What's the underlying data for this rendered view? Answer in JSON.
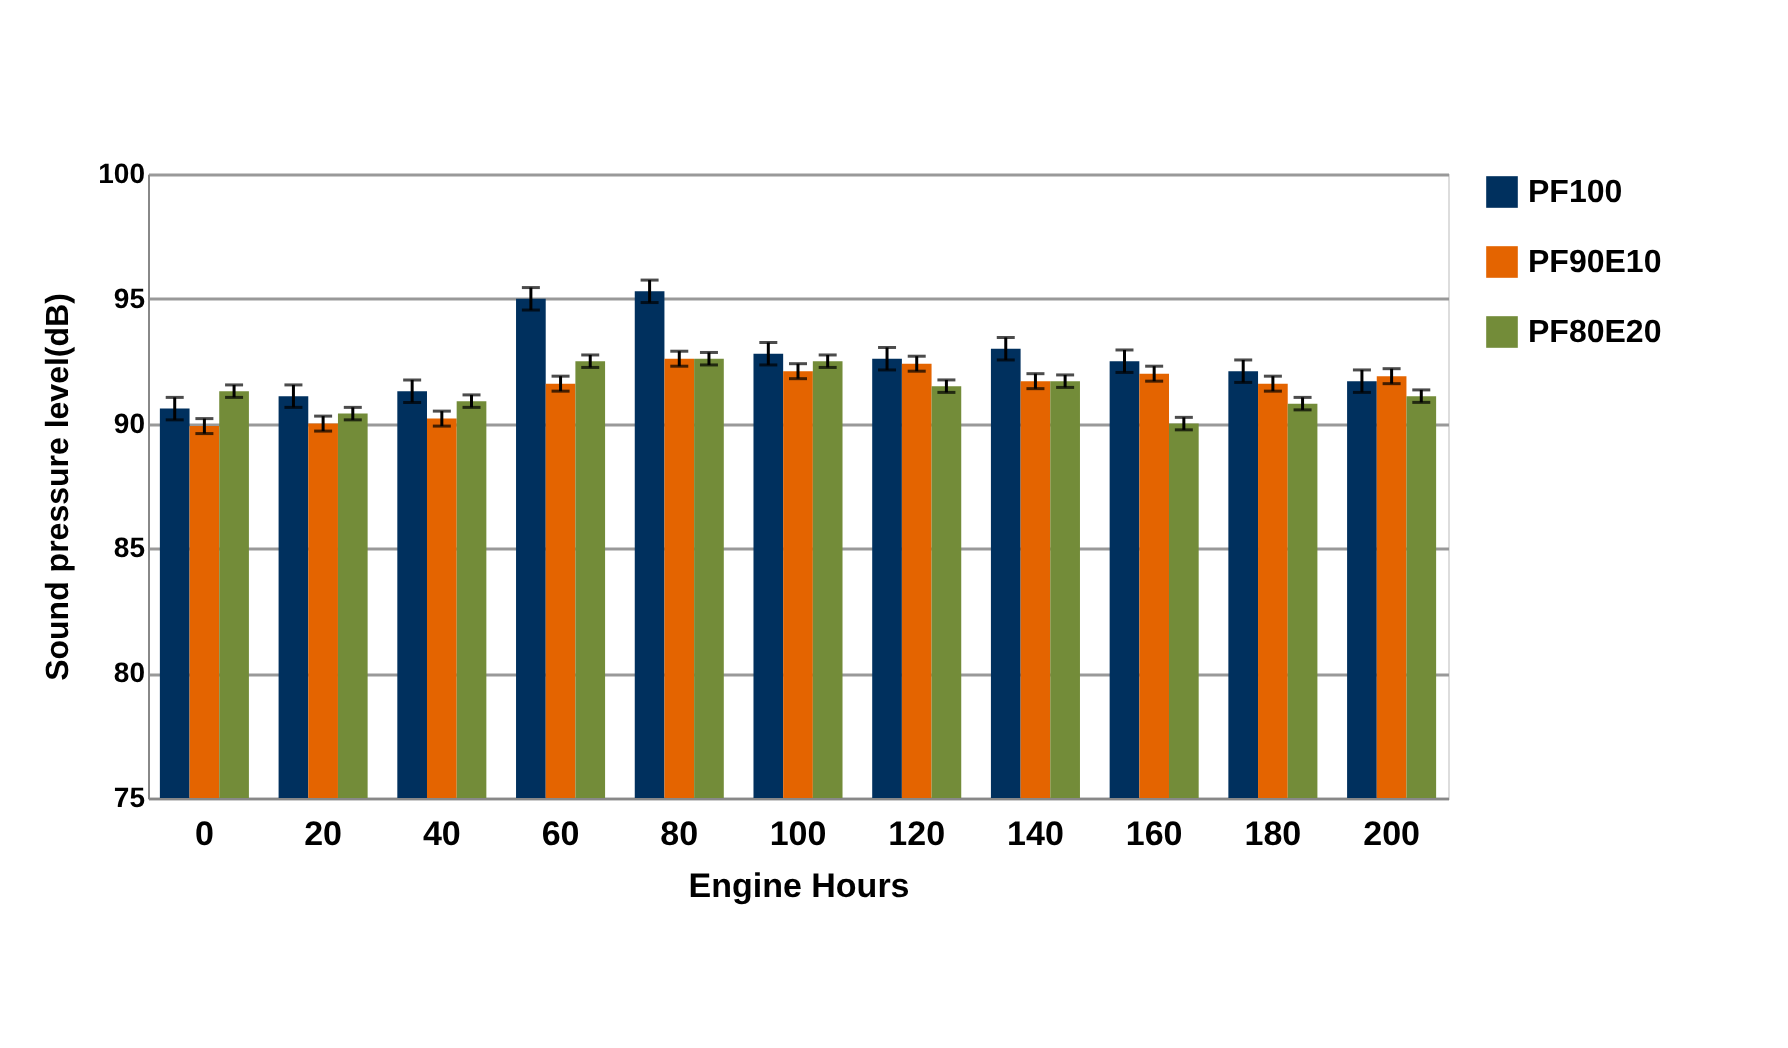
{
  "chart_data": {
    "type": "bar",
    "xlabel": "Engine Hours",
    "ylabel": "Sound pressure level(dB)",
    "categories": [
      "0",
      "20",
      "40",
      "60",
      "80",
      "100",
      "120",
      "140",
      "160",
      "180",
      "200"
    ],
    "series": [
      {
        "name": "PF100",
        "color": "#00305e",
        "values": [
          90.6,
          91.1,
          91.3,
          95.0,
          95.3,
          92.8,
          92.6,
          93.0,
          92.5,
          92.1,
          91.7
        ],
        "errors": [
          0.45,
          0.45,
          0.45,
          0.45,
          0.45,
          0.45,
          0.45,
          0.45,
          0.45,
          0.45,
          0.45
        ]
      },
      {
        "name": "PF90E10",
        "color": "#e46400",
        "values": [
          89.9,
          90.0,
          90.2,
          91.6,
          92.6,
          92.1,
          92.4,
          91.7,
          92.0,
          91.6,
          91.9
        ],
        "errors": [
          0.3,
          0.3,
          0.3,
          0.3,
          0.3,
          0.3,
          0.3,
          0.3,
          0.3,
          0.3,
          0.3
        ]
      },
      {
        "name": "PF80E20",
        "color": "#738c39",
        "values": [
          91.3,
          90.4,
          90.9,
          92.5,
          92.6,
          92.5,
          91.5,
          91.7,
          90.0,
          90.8,
          91.1
        ],
        "errors": [
          0.25,
          0.25,
          0.25,
          0.25,
          0.25,
          0.25,
          0.25,
          0.25,
          0.25,
          0.25,
          0.25
        ]
      }
    ],
    "ylim": [
      75,
      100
    ],
    "yticks": [
      75,
      80,
      85,
      90,
      95,
      100
    ],
    "grid": "y",
    "legend": "right"
  }
}
